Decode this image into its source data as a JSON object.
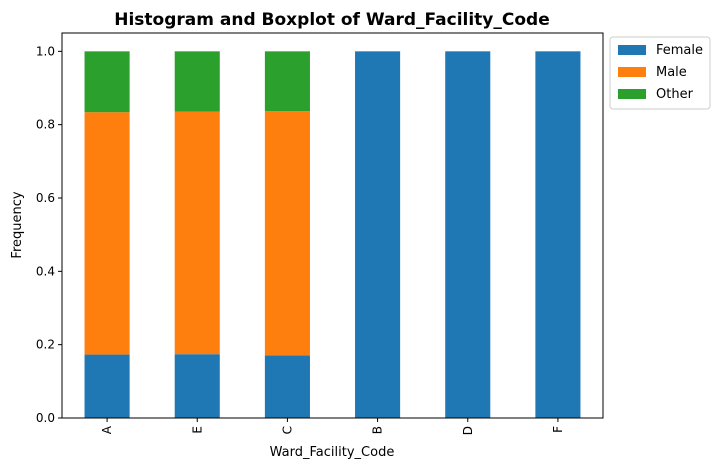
{
  "chart_data": {
    "type": "bar",
    "stacked": true,
    "title": "Histogram and Boxplot of Ward_Facility_Code",
    "xlabel": "Ward_Facility_Code",
    "ylabel": "Frequency",
    "categories": [
      "A",
      "E",
      "C",
      "B",
      "D",
      "F"
    ],
    "ylim": [
      0,
      1.05
    ],
    "yticks": [
      "0.0",
      "0.2",
      "0.4",
      "0.6",
      "0.8",
      "1.0"
    ],
    "series": [
      {
        "name": "Female",
        "color": "#1f77b4",
        "values": [
          0.173,
          0.174,
          0.171,
          1.0,
          1.0,
          1.0
        ]
      },
      {
        "name": "Male",
        "color": "#ff7f0e",
        "values": [
          0.661,
          0.662,
          0.666,
          0.0,
          0.0,
          0.0
        ]
      },
      {
        "name": "Other",
        "color": "#2ca02c",
        "values": [
          0.166,
          0.164,
          0.163,
          0.0,
          0.0,
          0.0
        ]
      }
    ],
    "legend_position": "outside-top-right",
    "grid": false
  }
}
